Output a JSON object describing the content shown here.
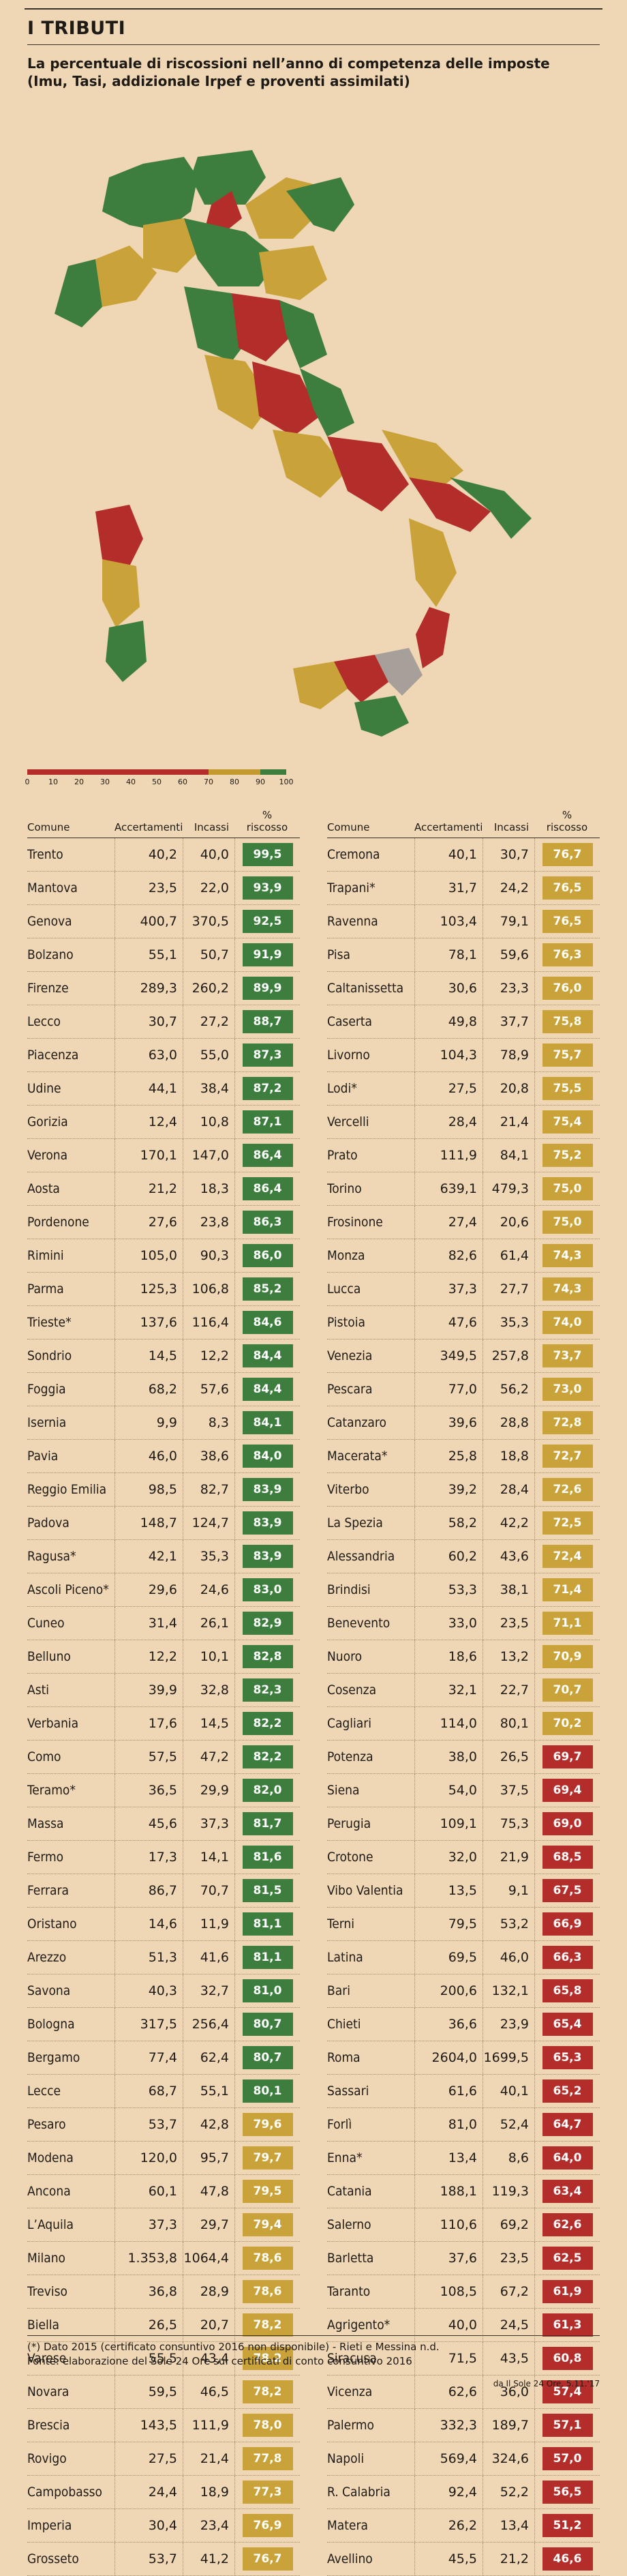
{
  "header": {
    "title": "I TRIBUTI",
    "subtitle": "La percentuale di riscossioni nell’anno di competenza delle imposte (Imu, Tasi, addizionale Irpef e proventi assimilati)"
  },
  "legend": {
    "ticks": [
      "0",
      "10",
      "20",
      "30",
      "40",
      "50",
      "60",
      "70",
      "80",
      "90",
      "100"
    ],
    "colors": [
      "#b32d2a",
      "#b32d2a",
      "#b32d2a",
      "#b32d2a",
      "#b32d2a",
      "#b32d2a",
      "#b32d2a",
      "#c39a2e",
      "#c39a2e",
      "#3d7d3e"
    ]
  },
  "colors": {
    "green": "#3d7d3e",
    "yellow": "#c9a33a",
    "red": "#b32d2a",
    "gray": "#a7a09a"
  },
  "table": {
    "headers": {
      "comune": "Comune",
      "accertamenti": "Accertamenti",
      "incassi": "Incassi",
      "riscosso_line1": "%",
      "riscosso_line2": "riscosso"
    },
    "left": [
      {
        "c": "Trento",
        "a": "40,2",
        "i": "40,0",
        "p": "99,5",
        "level": "green"
      },
      {
        "c": "Mantova",
        "a": "23,5",
        "i": "22,0",
        "p": "93,9",
        "level": "green"
      },
      {
        "c": "Genova",
        "a": "400,7",
        "i": "370,5",
        "p": "92,5",
        "level": "green"
      },
      {
        "c": "Bolzano",
        "a": "55,1",
        "i": "50,7",
        "p": "91,9",
        "level": "green"
      },
      {
        "c": "Firenze",
        "a": "289,3",
        "i": "260,2",
        "p": "89,9",
        "level": "green"
      },
      {
        "c": "Lecco",
        "a": "30,7",
        "i": "27,2",
        "p": "88,7",
        "level": "green"
      },
      {
        "c": "Piacenza",
        "a": "63,0",
        "i": "55,0",
        "p": "87,3",
        "level": "green"
      },
      {
        "c": "Udine",
        "a": "44,1",
        "i": "38,4",
        "p": "87,2",
        "level": "green"
      },
      {
        "c": "Gorizia",
        "a": "12,4",
        "i": "10,8",
        "p": "87,1",
        "level": "green"
      },
      {
        "c": "Verona",
        "a": "170,1",
        "i": "147,0",
        "p": "86,4",
        "level": "green"
      },
      {
        "c": "Aosta",
        "a": "21,2",
        "i": "18,3",
        "p": "86,4",
        "level": "green"
      },
      {
        "c": "Pordenone",
        "a": "27,6",
        "i": "23,8",
        "p": "86,3",
        "level": "green"
      },
      {
        "c": "Rimini",
        "a": "105,0",
        "i": "90,3",
        "p": "86,0",
        "level": "green"
      },
      {
        "c": "Parma",
        "a": "125,3",
        "i": "106,8",
        "p": "85,2",
        "level": "green"
      },
      {
        "c": "Trieste*",
        "a": "137,6",
        "i": "116,4",
        "p": "84,6",
        "level": "green"
      },
      {
        "c": "Sondrio",
        "a": "14,5",
        "i": "12,2",
        "p": "84,4",
        "level": "green"
      },
      {
        "c": "Foggia",
        "a": "68,2",
        "i": "57,6",
        "p": "84,4",
        "level": "green"
      },
      {
        "c": "Isernia",
        "a": "9,9",
        "i": "8,3",
        "p": "84,1",
        "level": "green"
      },
      {
        "c": "Pavia",
        "a": "46,0",
        "i": "38,6",
        "p": "84,0",
        "level": "green"
      },
      {
        "c": "Reggio Emilia",
        "a": "98,5",
        "i": "82,7",
        "p": "83,9",
        "level": "green"
      },
      {
        "c": "Padova",
        "a": "148,7",
        "i": "124,7",
        "p": "83,9",
        "level": "green"
      },
      {
        "c": "Ragusa*",
        "a": "42,1",
        "i": "35,3",
        "p": "83,9",
        "level": "green"
      },
      {
        "c": "Ascoli Piceno*",
        "a": "29,6",
        "i": "24,6",
        "p": "83,0",
        "level": "green"
      },
      {
        "c": "Cuneo",
        "a": "31,4",
        "i": "26,1",
        "p": "82,9",
        "level": "green"
      },
      {
        "c": "Belluno",
        "a": "12,2",
        "i": "10,1",
        "p": "82,8",
        "level": "green"
      },
      {
        "c": "Asti",
        "a": "39,9",
        "i": "32,8",
        "p": "82,3",
        "level": "green"
      },
      {
        "c": "Verbania",
        "a": "17,6",
        "i": "14,5",
        "p": "82,2",
        "level": "green"
      },
      {
        "c": "Como",
        "a": "57,5",
        "i": "47,2",
        "p": "82,2",
        "level": "green"
      },
      {
        "c": "Teramo*",
        "a": "36,5",
        "i": "29,9",
        "p": "82,0",
        "level": "green"
      },
      {
        "c": "Massa",
        "a": "45,6",
        "i": "37,3",
        "p": "81,7",
        "level": "green"
      },
      {
        "c": "Fermo",
        "a": "17,3",
        "i": "14,1",
        "p": "81,6",
        "level": "green"
      },
      {
        "c": "Ferrara",
        "a": "86,7",
        "i": "70,7",
        "p": "81,5",
        "level": "green"
      },
      {
        "c": "Oristano",
        "a": "14,6",
        "i": "11,9",
        "p": "81,1",
        "level": "green"
      },
      {
        "c": "Arezzo",
        "a": "51,3",
        "i": "41,6",
        "p": "81,1",
        "level": "green"
      },
      {
        "c": "Savona",
        "a": "40,3",
        "i": "32,7",
        "p": "81,0",
        "level": "green"
      },
      {
        "c": "Bologna",
        "a": "317,5",
        "i": "256,4",
        "p": "80,7",
        "level": "green"
      },
      {
        "c": "Bergamo",
        "a": "77,4",
        "i": "62,4",
        "p": "80,7",
        "level": "green"
      },
      {
        "c": "Lecce",
        "a": "68,7",
        "i": "55,1",
        "p": "80,1",
        "level": "green"
      },
      {
        "c": "Pesaro",
        "a": "53,7",
        "i": "42,8",
        "p": "79,6",
        "level": "yellow"
      },
      {
        "c": "Modena",
        "a": "120,0",
        "i": "95,7",
        "p": "79,7",
        "level": "yellow"
      },
      {
        "c": "Ancona",
        "a": "60,1",
        "i": "47,8",
        "p": "79,5",
        "level": "yellow"
      },
      {
        "c": "L’Aquila",
        "a": "37,3",
        "i": "29,7",
        "p": "79,4",
        "level": "yellow"
      },
      {
        "c": "Milano",
        "a": "1.353,8",
        "i": "1064,4",
        "p": "78,6",
        "level": "yellow"
      },
      {
        "c": "Treviso",
        "a": "36,8",
        "i": "28,9",
        "p": "78,6",
        "level": "yellow"
      },
      {
        "c": "Biella",
        "a": "26,5",
        "i": "20,7",
        "p": "78,2",
        "level": "yellow"
      },
      {
        "c": "Varese",
        "a": "55,5",
        "i": "43,4",
        "p": "78,2",
        "level": "yellow"
      },
      {
        "c": "Novara",
        "a": "59,5",
        "i": "46,5",
        "p": "78,2",
        "level": "yellow"
      },
      {
        "c": "Brescia",
        "a": "143,5",
        "i": "111,9",
        "p": "78,0",
        "level": "yellow"
      },
      {
        "c": "Rovigo",
        "a": "27,5",
        "i": "21,4",
        "p": "77,8",
        "level": "yellow"
      },
      {
        "c": "Campobasso",
        "a": "24,4",
        "i": "18,9",
        "p": "77,3",
        "level": "yellow"
      },
      {
        "c": "Imperia",
        "a": "30,4",
        "i": "23,4",
        "p": "76,9",
        "level": "yellow"
      },
      {
        "c": "Grosseto",
        "a": "53,7",
        "i": "41,2",
        "p": "76,7",
        "level": "yellow"
      }
    ],
    "right": [
      {
        "c": "Cremona",
        "a": "40,1",
        "i": "30,7",
        "p": "76,7",
        "level": "yellow"
      },
      {
        "c": "Trapani*",
        "a": "31,7",
        "i": "24,2",
        "p": "76,5",
        "level": "yellow"
      },
      {
        "c": "Ravenna",
        "a": "103,4",
        "i": "79,1",
        "p": "76,5",
        "level": "yellow"
      },
      {
        "c": "Pisa",
        "a": "78,1",
        "i": "59,6",
        "p": "76,3",
        "level": "yellow"
      },
      {
        "c": "Caltanissetta",
        "a": "30,6",
        "i": "23,3",
        "p": "76,0",
        "level": "yellow"
      },
      {
        "c": "Caserta",
        "a": "49,8",
        "i": "37,7",
        "p": "75,8",
        "level": "yellow"
      },
      {
        "c": "Livorno",
        "a": "104,3",
        "i": "78,9",
        "p": "75,7",
        "level": "yellow"
      },
      {
        "c": "Lodi*",
        "a": "27,5",
        "i": "20,8",
        "p": "75,5",
        "level": "yellow"
      },
      {
        "c": "Vercelli",
        "a": "28,4",
        "i": "21,4",
        "p": "75,4",
        "level": "yellow"
      },
      {
        "c": "Prato",
        "a": "111,9",
        "i": "84,1",
        "p": "75,2",
        "level": "yellow"
      },
      {
        "c": "Torino",
        "a": "639,1",
        "i": "479,3",
        "p": "75,0",
        "level": "yellow"
      },
      {
        "c": "Frosinone",
        "a": "27,4",
        "i": "20,6",
        "p": "75,0",
        "level": "yellow"
      },
      {
        "c": "Monza",
        "a": "82,6",
        "i": "61,4",
        "p": "74,3",
        "level": "yellow"
      },
      {
        "c": "Lucca",
        "a": "37,3",
        "i": "27,7",
        "p": "74,3",
        "level": "yellow"
      },
      {
        "c": "Pistoia",
        "a": "47,6",
        "i": "35,3",
        "p": "74,0",
        "level": "yellow"
      },
      {
        "c": "Venezia",
        "a": "349,5",
        "i": "257,8",
        "p": "73,7",
        "level": "yellow"
      },
      {
        "c": "Pescara",
        "a": "77,0",
        "i": "56,2",
        "p": "73,0",
        "level": "yellow"
      },
      {
        "c": "Catanzaro",
        "a": "39,6",
        "i": "28,8",
        "p": "72,8",
        "level": "yellow"
      },
      {
        "c": "Macerata*",
        "a": "25,8",
        "i": "18,8",
        "p": "72,7",
        "level": "yellow"
      },
      {
        "c": "Viterbo",
        "a": "39,2",
        "i": "28,4",
        "p": "72,6",
        "level": "yellow"
      },
      {
        "c": "La Spezia",
        "a": "58,2",
        "i": "42,2",
        "p": "72,5",
        "level": "yellow"
      },
      {
        "c": "Alessandria",
        "a": "60,2",
        "i": "43,6",
        "p": "72,4",
        "level": "yellow"
      },
      {
        "c": "Brindisi",
        "a": "53,3",
        "i": "38,1",
        "p": "71,4",
        "level": "yellow"
      },
      {
        "c": "Benevento",
        "a": "33,0",
        "i": "23,5",
        "p": "71,1",
        "level": "yellow"
      },
      {
        "c": "Nuoro",
        "a": "18,6",
        "i": "13,2",
        "p": "70,9",
        "level": "yellow"
      },
      {
        "c": "Cosenza",
        "a": "32,1",
        "i": "22,7",
        "p": "70,7",
        "level": "yellow"
      },
      {
        "c": "Cagliari",
        "a": "114,0",
        "i": "80,1",
        "p": "70,2",
        "level": "yellow"
      },
      {
        "c": "Potenza",
        "a": "38,0",
        "i": "26,5",
        "p": "69,7",
        "level": "red"
      },
      {
        "c": "Siena",
        "a": "54,0",
        "i": "37,5",
        "p": "69,4",
        "level": "red"
      },
      {
        "c": "Perugia",
        "a": "109,1",
        "i": "75,3",
        "p": "69,0",
        "level": "red"
      },
      {
        "c": "Crotone",
        "a": "32,0",
        "i": "21,9",
        "p": "68,5",
        "level": "red"
      },
      {
        "c": "Vibo Valentia",
        "a": "13,5",
        "i": "9,1",
        "p": "67,5",
        "level": "red"
      },
      {
        "c": "Terni",
        "a": "79,5",
        "i": "53,2",
        "p": "66,9",
        "level": "red"
      },
      {
        "c": "Latina",
        "a": "69,5",
        "i": "46,0",
        "p": "66,3",
        "level": "red"
      },
      {
        "c": "Bari",
        "a": "200,6",
        "i": "132,1",
        "p": "65,8",
        "level": "red"
      },
      {
        "c": "Chieti",
        "a": "36,6",
        "i": "23,9",
        "p": "65,4",
        "level": "red"
      },
      {
        "c": "Roma",
        "a": "2604,0",
        "i": "1699,5",
        "p": "65,3",
        "level": "red"
      },
      {
        "c": "Sassari",
        "a": "61,6",
        "i": "40,1",
        "p": "65,2",
        "level": "red"
      },
      {
        "c": "Forlì",
        "a": "81,0",
        "i": "52,4",
        "p": "64,7",
        "level": "red"
      },
      {
        "c": "Enna*",
        "a": "13,4",
        "i": "8,6",
        "p": "64,0",
        "level": "red"
      },
      {
        "c": "Catania",
        "a": "188,1",
        "i": "119,3",
        "p": "63,4",
        "level": "red"
      },
      {
        "c": "Salerno",
        "a": "110,6",
        "i": "69,2",
        "p": "62,6",
        "level": "red"
      },
      {
        "c": "Barletta",
        "a": "37,6",
        "i": "23,5",
        "p": "62,5",
        "level": "red"
      },
      {
        "c": "Taranto",
        "a": "108,5",
        "i": "67,2",
        "p": "61,9",
        "level": "red"
      },
      {
        "c": "Agrigento*",
        "a": "40,0",
        "i": "24,5",
        "p": "61,3",
        "level": "red"
      },
      {
        "c": "Siracusa",
        "a": "71,5",
        "i": "43,5",
        "p": "60,8",
        "level": "red"
      },
      {
        "c": "Vicenza",
        "a": "62,6",
        "i": "36,0",
        "p": "57,4",
        "level": "red"
      },
      {
        "c": "Palermo",
        "a": "332,3",
        "i": "189,7",
        "p": "57,1",
        "level": "red"
      },
      {
        "c": "Napoli",
        "a": "569,4",
        "i": "324,6",
        "p": "57,0",
        "level": "red"
      },
      {
        "c": "R. Calabria",
        "a": "92,4",
        "i": "52,2",
        "p": "56,5",
        "level": "red"
      },
      {
        "c": "Matera",
        "a": "26,2",
        "i": "13,4",
        "p": "51,2",
        "level": "red"
      },
      {
        "c": "Avellino",
        "a": "45,5",
        "i": "21,2",
        "p": "46,6",
        "level": "red"
      }
    ]
  },
  "footnote": {
    "line1": "(*) Dato 2015 (certificato consuntivo 2016 non disponibile) - Rieti e Messina n.d.",
    "line2": "Fonte: elaborazione del Sole 24 Ore sui certificati di conto consuntivo 2016"
  },
  "credit": "da Il Sole 24 Ore, 5.11.'17"
}
